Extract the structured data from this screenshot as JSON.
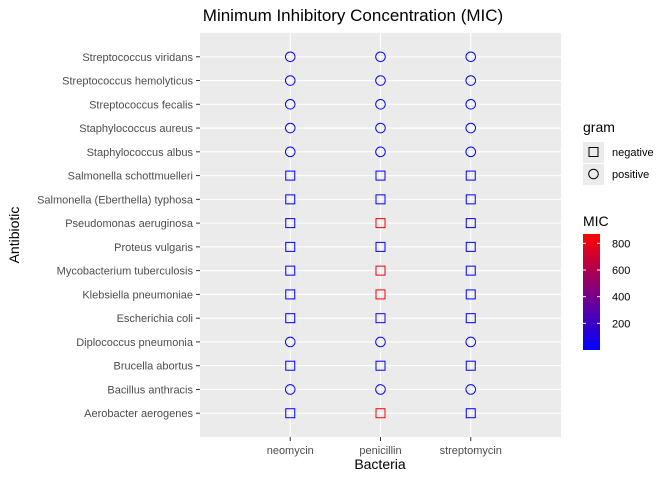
{
  "chart_data": {
    "type": "scatter",
    "title": "Minimum Inhibitory Concentration (MIC)",
    "xlabel": "Bacteria",
    "ylabel": "Antibiotic",
    "x_categories": [
      "neomycin",
      "penicillin",
      "streptomycin"
    ],
    "y_categories": [
      "Aerobacter aerogenes",
      "Bacillus anthracis",
      "Brucella abortus",
      "Diplococcus pneumonia",
      "Escherichia coli",
      "Klebsiella pneumoniae",
      "Mycobacterium tuberculosis",
      "Proteus vulgaris",
      "Pseudomonas aeruginosa",
      "Salmonella (Eberthella) typhosa",
      "Salmonella schottmuelleri",
      "Staphylococcus albus",
      "Staphylococcus aureus",
      "Streptococcus fecalis",
      "Streptococcus hemolyticus",
      "Streptococcus viridans"
    ],
    "points": [
      {
        "bacteria": "Aerobacter aerogenes",
        "gram": "negative",
        "values": [
          1.6,
          870,
          1
        ]
      },
      {
        "bacteria": "Bacillus anthracis",
        "gram": "positive",
        "values": [
          0.007,
          0.001,
          0.01
        ]
      },
      {
        "bacteria": "Brucella abortus",
        "gram": "negative",
        "values": [
          0.02,
          1,
          2
        ]
      },
      {
        "bacteria": "Diplococcus pneumonia",
        "gram": "positive",
        "values": [
          10,
          0.005,
          11
        ]
      },
      {
        "bacteria": "Escherichia coli",
        "gram": "negative",
        "values": [
          0.1,
          100,
          0.4
        ]
      },
      {
        "bacteria": "Klebsiella pneumoniae",
        "gram": "negative",
        "values": [
          1,
          850,
          1.2
        ]
      },
      {
        "bacteria": "Mycobacterium tuberculosis",
        "gram": "negative",
        "values": [
          2,
          800,
          5
        ]
      },
      {
        "bacteria": "Proteus vulgaris",
        "gram": "negative",
        "values": [
          0.1,
          3,
          0.1
        ]
      },
      {
        "bacteria": "Pseudomonas aeruginosa",
        "gram": "negative",
        "values": [
          0.4,
          850,
          2
        ]
      },
      {
        "bacteria": "Salmonella (Eberthella) typhosa",
        "gram": "negative",
        "values": [
          0.008,
          1,
          0.4
        ]
      },
      {
        "bacteria": "Salmonella schottmuelleri",
        "gram": "negative",
        "values": [
          0.09,
          10,
          0.8
        ]
      },
      {
        "bacteria": "Staphylococcus albus",
        "gram": "positive",
        "values": [
          0.001,
          0.007,
          0.1
        ]
      },
      {
        "bacteria": "Staphylococcus aureus",
        "gram": "positive",
        "values": [
          0.001,
          0.03,
          0.03
        ]
      },
      {
        "bacteria": "Streptococcus fecalis",
        "gram": "positive",
        "values": [
          0.1,
          1,
          1
        ]
      },
      {
        "bacteria": "Streptococcus hemolyticus",
        "gram": "positive",
        "values": [
          14,
          0.001,
          10
        ]
      },
      {
        "bacteria": "Streptococcus viridans",
        "gram": "positive",
        "values": [
          40,
          0.005,
          1
        ]
      }
    ],
    "shape_legend": {
      "title": "gram",
      "items": [
        {
          "label": "negative",
          "shape": "square"
        },
        {
          "label": "positive",
          "shape": "circle"
        }
      ]
    },
    "color_legend": {
      "title": "MIC",
      "ticks": [
        200,
        400,
        600,
        800
      ],
      "range": [
        0,
        870
      ],
      "low_color": "#0000ff",
      "high_color": "#ff0000"
    },
    "colors": {
      "panel_background": "#ebebeb",
      "grid": "#ffffff"
    },
    "grid": true,
    "legend_position": "right"
  }
}
